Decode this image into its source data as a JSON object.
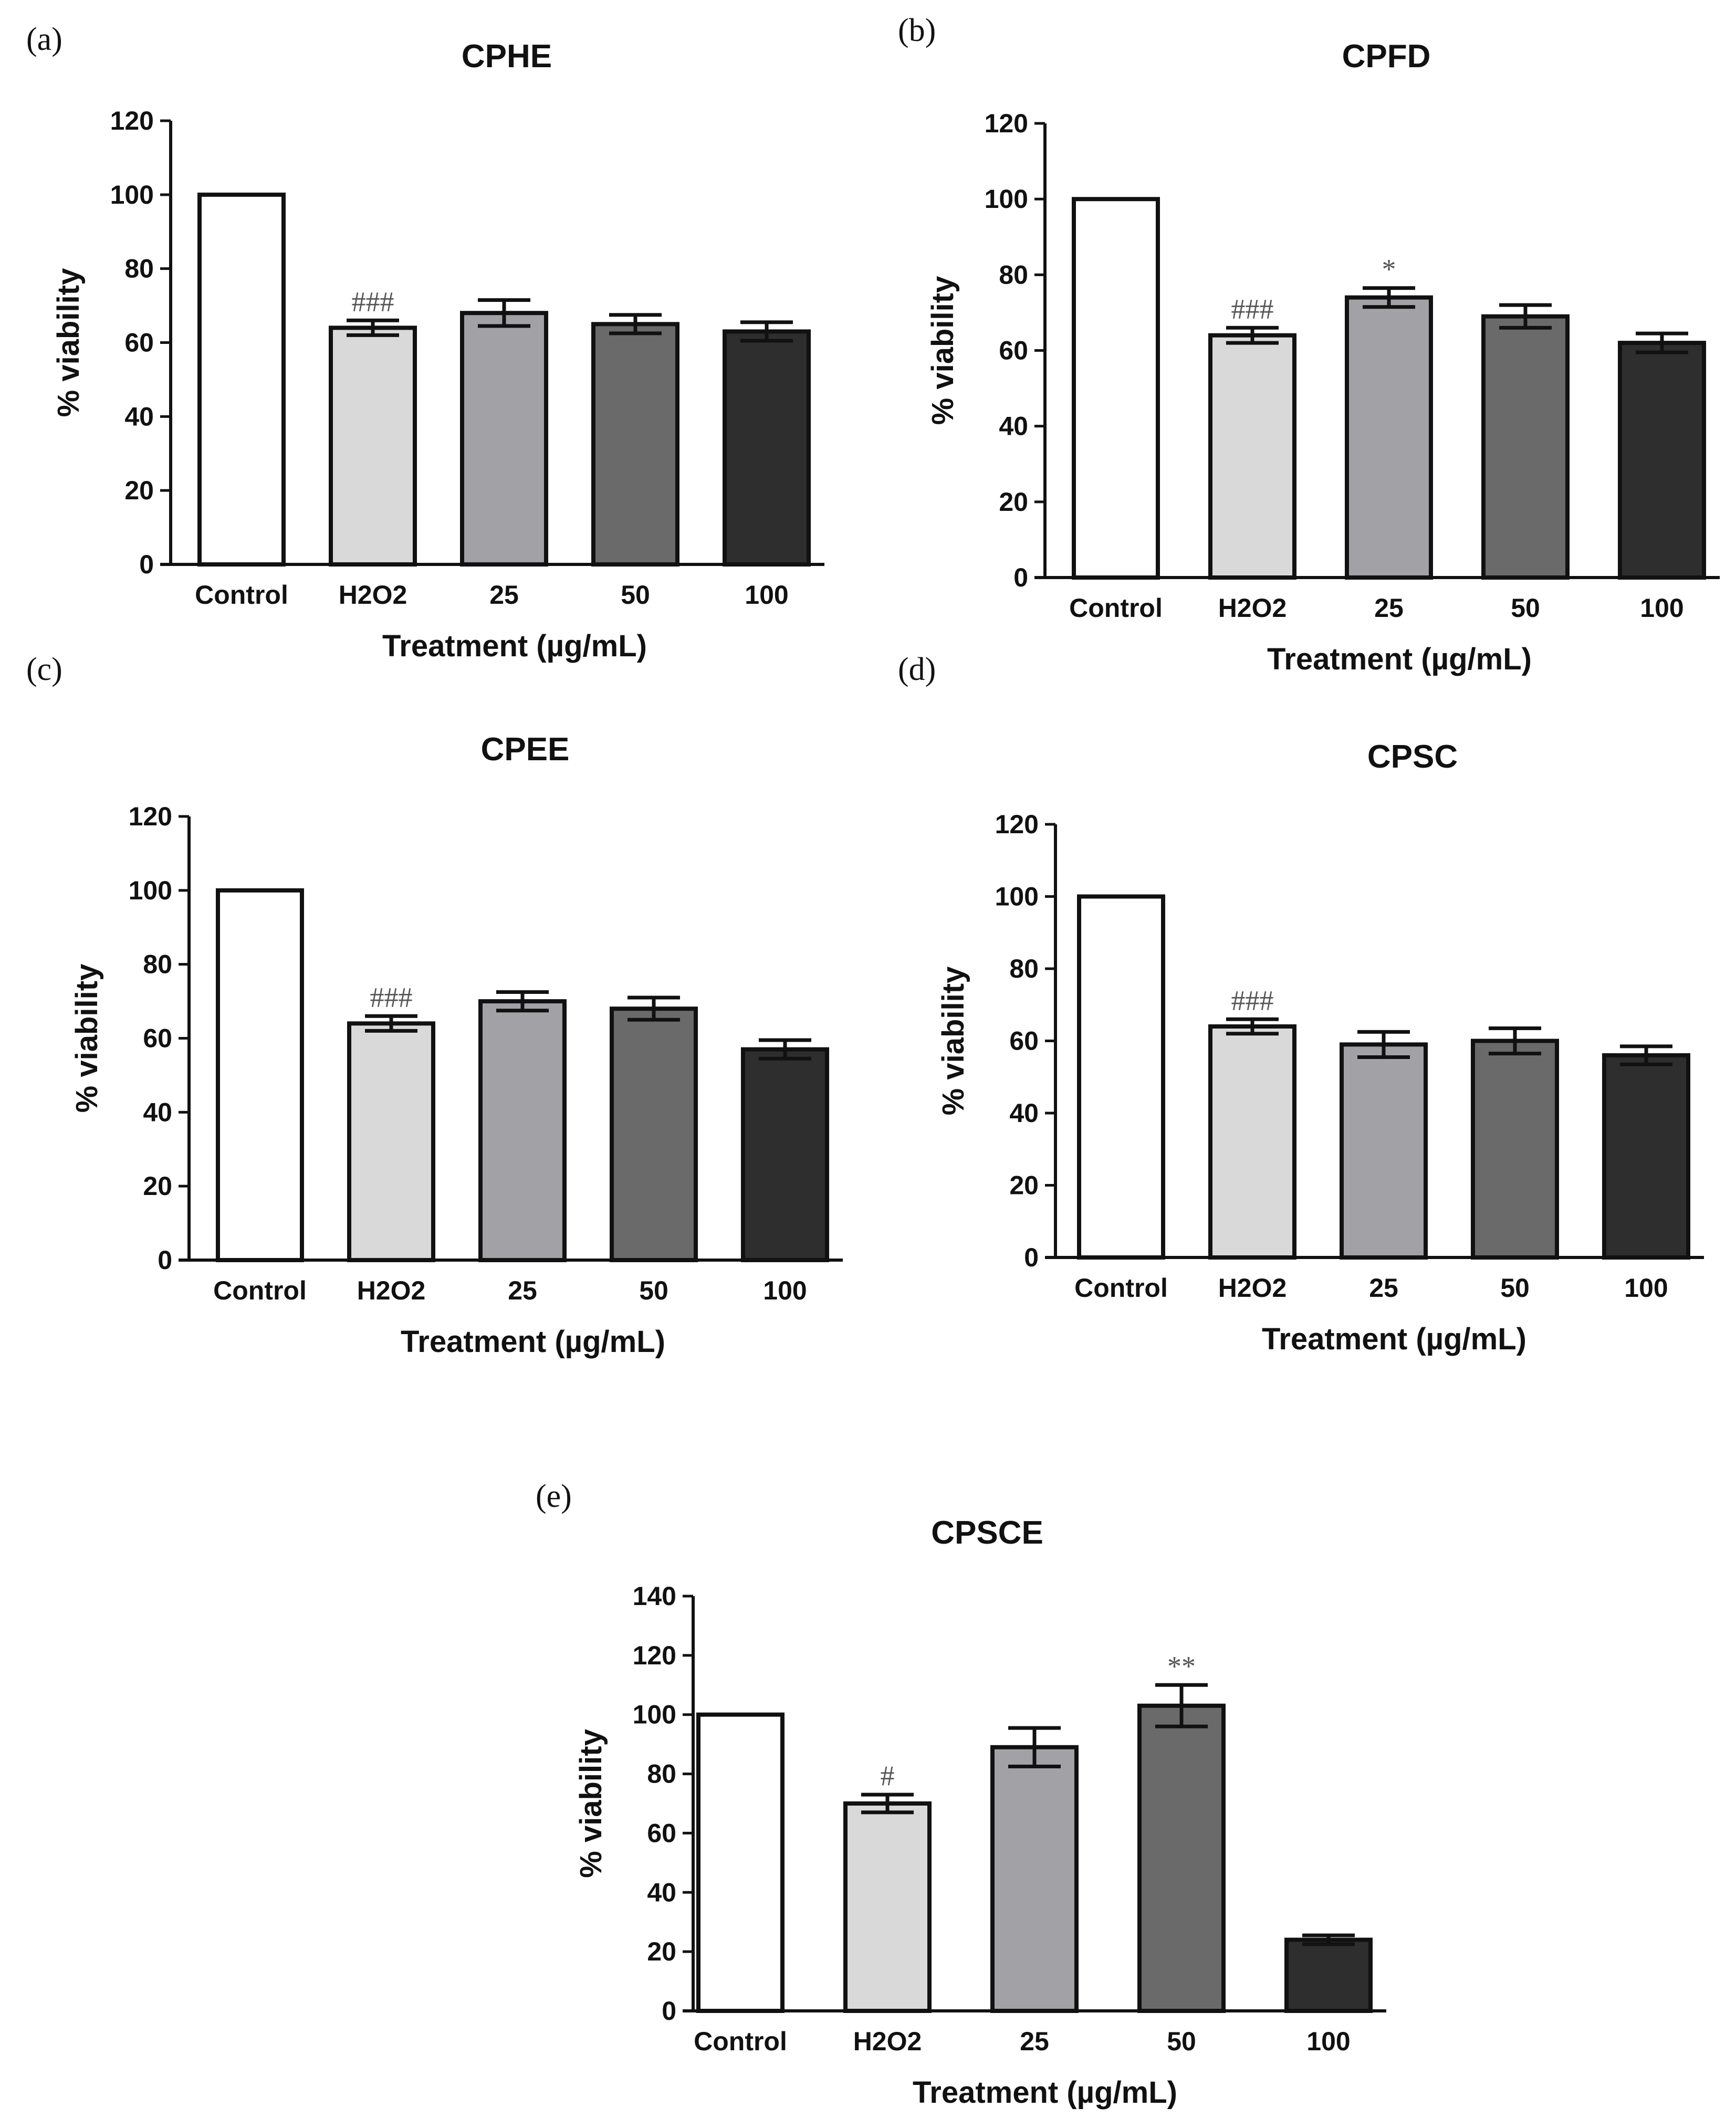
{
  "chart_data": [
    {
      "type": "bar",
      "panel_label": "(a)",
      "title": "CPHE",
      "xlabel": "Treatment (µg/mL)",
      "ylabel": "% viability",
      "ylim": [
        0,
        120
      ],
      "yticks": [
        0,
        20,
        40,
        60,
        80,
        100,
        120
      ],
      "categories": [
        "Control",
        "H2O2",
        "25",
        "50",
        "100"
      ],
      "values": [
        100,
        64,
        68,
        65,
        63
      ],
      "errors": [
        0,
        2,
        3.5,
        2.5,
        2.5
      ],
      "annotations": [
        "",
        "###",
        "",
        "",
        ""
      ],
      "colors": [
        "#ffffff",
        "#d9d9d9",
        "#a2a2a6",
        "#6a6a6a",
        "#2e2e2e"
      ]
    },
    {
      "type": "bar",
      "panel_label": "(b)",
      "title": "CPFD",
      "xlabel": "Treatment (µg/mL)",
      "ylabel": "% viability",
      "ylim": [
        0,
        120
      ],
      "yticks": [
        0,
        20,
        40,
        60,
        80,
        100,
        120
      ],
      "categories": [
        "Control",
        "H2O2",
        "25",
        "50",
        "100"
      ],
      "values": [
        100,
        64,
        74,
        69,
        62
      ],
      "errors": [
        0,
        2,
        2.5,
        3,
        2.5
      ],
      "annotations": [
        "",
        "###",
        "*",
        "",
        ""
      ],
      "colors": [
        "#ffffff",
        "#d9d9d9",
        "#a2a2a6",
        "#6a6a6a",
        "#2e2e2e"
      ]
    },
    {
      "type": "bar",
      "panel_label": "(c)",
      "title": "CPEE",
      "xlabel": "Treatment (µg/mL)",
      "ylabel": "% viability",
      "ylim": [
        0,
        120
      ],
      "yticks": [
        0,
        20,
        40,
        60,
        80,
        100,
        120
      ],
      "categories": [
        "Control",
        "H2O2",
        "25",
        "50",
        "100"
      ],
      "values": [
        100,
        64,
        70,
        68,
        57
      ],
      "errors": [
        0,
        2,
        2.5,
        3,
        2.5
      ],
      "annotations": [
        "",
        "###",
        "",
        "",
        ""
      ],
      "colors": [
        "#ffffff",
        "#d9d9d9",
        "#a2a2a6",
        "#6a6a6a",
        "#2e2e2e"
      ]
    },
    {
      "type": "bar",
      "panel_label": "(d)",
      "title": "CPSC",
      "xlabel": "Treatment (µg/mL)",
      "ylabel": "% viability",
      "ylim": [
        0,
        120
      ],
      "yticks": [
        0,
        20,
        40,
        60,
        80,
        100,
        120
      ],
      "categories": [
        "Control",
        "H2O2",
        "25",
        "50",
        "100"
      ],
      "values": [
        100,
        64,
        59,
        60,
        56
      ],
      "errors": [
        0,
        2,
        3.5,
        3.5,
        2.5
      ],
      "annotations": [
        "",
        "###",
        "",
        "",
        ""
      ],
      "colors": [
        "#ffffff",
        "#d9d9d9",
        "#a2a2a6",
        "#6a6a6a",
        "#2e2e2e"
      ]
    },
    {
      "type": "bar",
      "panel_label": "(e)",
      "title": "CPSCE",
      "xlabel": "Treatment (µg/mL)",
      "ylabel": "% viability",
      "ylim": [
        0,
        140
      ],
      "yticks": [
        0,
        20,
        40,
        60,
        80,
        100,
        120,
        140
      ],
      "categories": [
        "Control",
        "H2O2",
        "25",
        "50",
        "100"
      ],
      "values": [
        100,
        70,
        89,
        103,
        24
      ],
      "errors": [
        0,
        3,
        6.5,
        7,
        1.5
      ],
      "annotations": [
        "",
        "#",
        "",
        "**",
        ""
      ],
      "colors": [
        "#ffffff",
        "#d9d9d9",
        "#a2a2a6",
        "#6a6a6a",
        "#2e2e2e"
      ]
    }
  ]
}
